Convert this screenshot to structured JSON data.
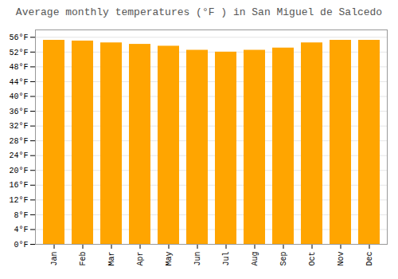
{
  "chart_data": {
    "type": "bar",
    "title": "Average monthly temperatures (°F ) in San Miguel de Salcedo",
    "categories": [
      "Jan",
      "Feb",
      "Mar",
      "Apr",
      "May",
      "Jun",
      "Jul",
      "Aug",
      "Sep",
      "Oct",
      "Nov",
      "Dec"
    ],
    "values": [
      55.2,
      55.0,
      54.5,
      54.1,
      53.6,
      52.5,
      52.0,
      52.5,
      53.1,
      54.5,
      55.2,
      55.2
    ],
    "color": "#FFA500",
    "ylim": [
      0,
      58
    ],
    "yticks": [
      {
        "value": 0,
        "label": "0°F"
      },
      {
        "value": 4,
        "label": "4°F"
      },
      {
        "value": 8,
        "label": "8°F"
      },
      {
        "value": 12,
        "label": "12°F"
      },
      {
        "value": 16,
        "label": "16°F"
      },
      {
        "value": 20,
        "label": "20°F"
      },
      {
        "value": 24,
        "label": "24°F"
      },
      {
        "value": 28,
        "label": "28°F"
      },
      {
        "value": 32,
        "label": "32°F"
      },
      {
        "value": 36,
        "label": "36°F"
      },
      {
        "value": 40,
        "label": "40°F"
      },
      {
        "value": 44,
        "label": "44°F"
      },
      {
        "value": 48,
        "label": "48°F"
      },
      {
        "value": 52,
        "label": "52°F"
      },
      {
        "value": 56,
        "label": "56°F"
      }
    ],
    "grid": true
  }
}
